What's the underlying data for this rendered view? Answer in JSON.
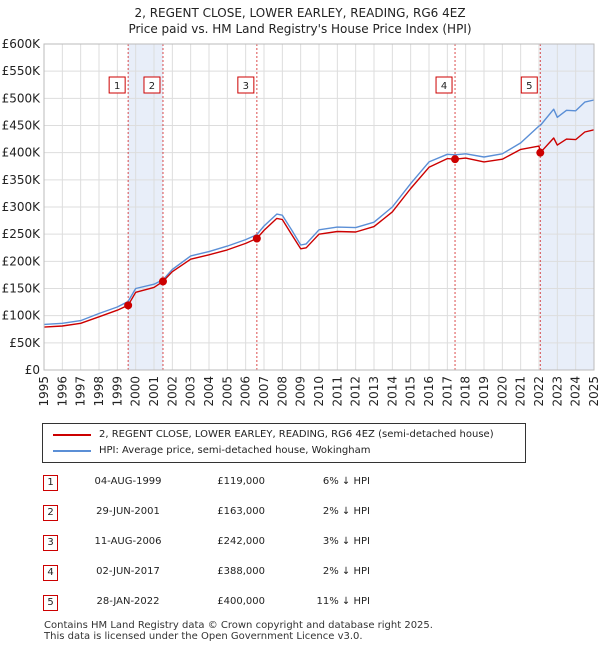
{
  "title_line1": "2, REGENT CLOSE, LOWER EARLEY, READING, RG6 4EZ",
  "title_line2": "Price paid vs. HM Land Registry's House Price Index (HPI)",
  "legend": {
    "series1": "2, REGENT CLOSE, LOWER EARLEY, READING, RG6 4EZ (semi-detached house)",
    "series2": "HPI: Average price, semi-detached house, Wokingham"
  },
  "colors": {
    "property": "#cc0000",
    "hpi": "#5b8fd6",
    "shade": "#e8eef9"
  },
  "sales": [
    {
      "num": "1",
      "date": "04-AUG-1999",
      "price": "£119,000",
      "hpi": "6% ↓ HPI"
    },
    {
      "num": "2",
      "date": "29-JUN-2001",
      "price": "£163,000",
      "hpi": "2% ↓ HPI"
    },
    {
      "num": "3",
      "date": "11-AUG-2006",
      "price": "£242,000",
      "hpi": "3% ↓ HPI"
    },
    {
      "num": "4",
      "date": "02-JUN-2017",
      "price": "£388,000",
      "hpi": "2% ↓ HPI"
    },
    {
      "num": "5",
      "date": "28-JAN-2022",
      "price": "£400,000",
      "hpi": "11% ↓ HPI"
    }
  ],
  "footer_line1": "Contains HM Land Registry data © Crown copyright and database right 2025.",
  "footer_line2": "This data is licensed under the Open Government Licence v3.0.",
  "chart_data": {
    "type": "line",
    "xlim": [
      1995,
      2025
    ],
    "ylim": [
      0,
      600000
    ],
    "x_ticks": [
      "1995",
      "1996",
      "1997",
      "1998",
      "1999",
      "2000",
      "2001",
      "2002",
      "2003",
      "2004",
      "2005",
      "2006",
      "2007",
      "2008",
      "2009",
      "2010",
      "2011",
      "2012",
      "2013",
      "2014",
      "2015",
      "2016",
      "2017",
      "2018",
      "2019",
      "2020",
      "2021",
      "2022",
      "2023",
      "2024",
      "2025"
    ],
    "y_ticks": [
      {
        "v": 0,
        "label": "£0"
      },
      {
        "v": 50000,
        "label": "£50K"
      },
      {
        "v": 100000,
        "label": "£100K"
      },
      {
        "v": 150000,
        "label": "£150K"
      },
      {
        "v": 200000,
        "label": "£200K"
      },
      {
        "v": 250000,
        "label": "£250K"
      },
      {
        "v": 300000,
        "label": "£300K"
      },
      {
        "v": 350000,
        "label": "£350K"
      },
      {
        "v": 400000,
        "label": "£400K"
      },
      {
        "v": 450000,
        "label": "£450K"
      },
      {
        "v": 500000,
        "label": "£500K"
      },
      {
        "v": 550000,
        "label": "£550K"
      },
      {
        "v": 600000,
        "label": "£600K"
      }
    ],
    "grid": true,
    "sale_markers": [
      {
        "label": "1",
        "x": 1999.59,
        "y": 119000
      },
      {
        "label": "2",
        "x": 2001.49,
        "y": 163000
      },
      {
        "label": "3",
        "x": 2006.61,
        "y": 242000
      },
      {
        "label": "4",
        "x": 2017.42,
        "y": 388000
      },
      {
        "label": "5",
        "x": 2022.07,
        "y": 400000
      }
    ],
    "shaded_ranges": [
      [
        1999.59,
        2001.49
      ],
      [
        2022.07,
        2025
      ]
    ],
    "series": [
      {
        "name": "HPI: Average price, semi-detached house, Wokingham",
        "x": [
          1995,
          1996,
          1997,
          1998,
          1999,
          1999.59,
          2000,
          2001,
          2001.49,
          2002,
          2003,
          2004,
          2005,
          2006,
          2006.61,
          2007,
          2007.7,
          2008,
          2008.5,
          2009,
          2009.3,
          2010,
          2011,
          2012,
          2013,
          2014,
          2015,
          2016,
          2017,
          2017.42,
          2018,
          2019,
          2020,
          2021,
          2022,
          2022.07,
          2022.8,
          2023,
          2023.5,
          2024,
          2024.5,
          2025
        ],
        "y": [
          84000,
          86000,
          91000,
          104000,
          116000,
          126000,
          150000,
          158000,
          166000,
          185000,
          210000,
          218000,
          228000,
          240000,
          249000,
          265000,
          287000,
          285000,
          258000,
          230000,
          232000,
          258000,
          263000,
          262000,
          272000,
          300000,
          343000,
          383000,
          397000,
          396000,
          398000,
          392000,
          398000,
          418000,
          449000,
          450000,
          480000,
          465000,
          478000,
          477000,
          493000,
          497000
        ]
      },
      {
        "name": "2, REGENT CLOSE, LOWER EARLEY, READING, RG6 4EZ (semi-detached house)",
        "x": [
          1995,
          1996,
          1997,
          1998,
          1999,
          1999.59,
          2000,
          2001,
          2001.49,
          2002,
          2003,
          2004,
          2005,
          2006,
          2006.61,
          2007,
          2007.7,
          2008,
          2008.5,
          2009,
          2009.3,
          2010,
          2011,
          2012,
          2013,
          2014,
          2015,
          2016,
          2017,
          2017.42,
          2018,
          2019,
          2020,
          2021,
          2022,
          2022.07,
          2022.8,
          2023,
          2023.5,
          2024,
          2024.5,
          2025
        ],
        "y": [
          79000,
          81000,
          86000,
          98000,
          110000,
          119000,
          143000,
          152000,
          163000,
          181000,
          204000,
          212000,
          221000,
          233000,
          242000,
          257000,
          279000,
          277000,
          250000,
          223000,
          225000,
          250000,
          255000,
          254000,
          264000,
          291000,
          334000,
          373000,
          389000,
          388000,
          390000,
          383000,
          388000,
          406000,
          412000,
          400000,
          427000,
          414000,
          425000,
          424000,
          438000,
          442000
        ]
      }
    ]
  }
}
